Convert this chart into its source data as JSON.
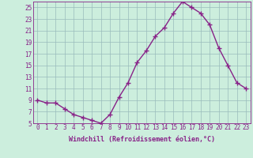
{
  "x": [
    0,
    1,
    2,
    3,
    4,
    5,
    6,
    7,
    8,
    9,
    10,
    11,
    12,
    13,
    14,
    15,
    16,
    17,
    18,
    19,
    20,
    21,
    22,
    23
  ],
  "y": [
    9,
    8.5,
    8.5,
    7.5,
    6.5,
    6,
    5.5,
    5,
    6.5,
    9.5,
    12,
    15.5,
    17.5,
    20,
    21.5,
    24,
    26,
    25,
    24,
    22,
    18,
    15,
    12,
    11
  ],
  "line_color": "#882288",
  "marker": "+",
  "markersize": 4,
  "markeredgewidth": 1.0,
  "bg_color": "#cceedd",
  "grid_color": "#99bbbb",
  "xlabel": "Windchill (Refroidissement éolien,°C)",
  "xlabel_fontsize": 6.0,
  "tick_label_fontsize": 5.5,
  "ylim": [
    5,
    26
  ],
  "yticks": [
    5,
    7,
    9,
    11,
    13,
    15,
    17,
    19,
    21,
    23,
    25
  ],
  "xticks": [
    0,
    1,
    2,
    3,
    4,
    5,
    6,
    7,
    8,
    9,
    10,
    11,
    12,
    13,
    14,
    15,
    16,
    17,
    18,
    19,
    20,
    21,
    22,
    23
  ],
  "linewidth": 1.0
}
